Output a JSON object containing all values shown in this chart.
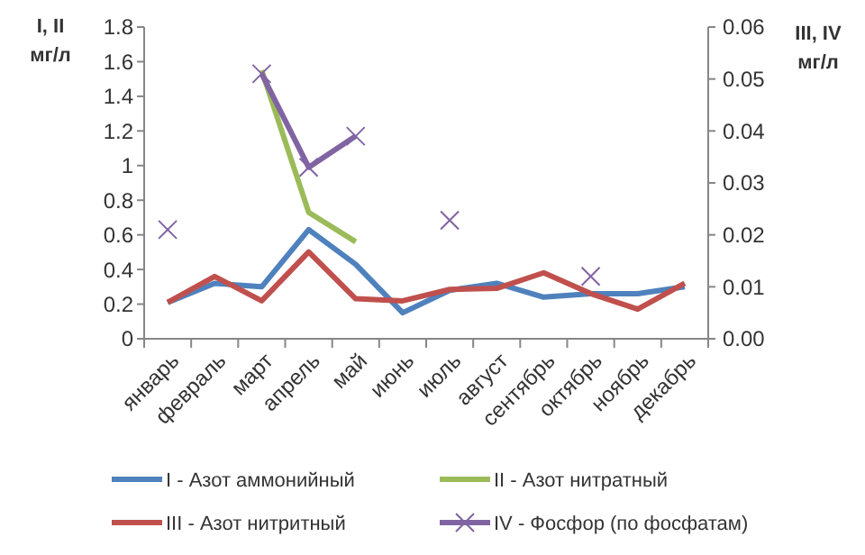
{
  "chart_data": {
    "type": "line",
    "ylabel": "I, II мг/л",
    "y2label": "III, IV мг/л",
    "categories": [
      "январь",
      "февраль",
      "март",
      "апрель",
      "май",
      "июнь",
      "июль",
      "август",
      "сентябрь",
      "октябрь",
      "ноябрь",
      "декабрь"
    ],
    "ylim": [
      0,
      1.8
    ],
    "yticks": [
      0,
      0.2,
      0.4,
      0.6,
      0.8,
      1,
      1.2,
      1.4,
      1.6,
      1.8
    ],
    "y2lim": [
      0,
      0.06
    ],
    "y2ticks": [
      {
        "value": 0,
        "label": "0.00"
      },
      {
        "value": 0.01,
        "label": "0.01"
      },
      {
        "value": 0.02,
        "label": "0.02"
      },
      {
        "value": 0.03,
        "label": "0.03"
      },
      {
        "value": 0.04,
        "label": "0.04"
      },
      {
        "value": 0.05,
        "label": "0.05"
      },
      {
        "value": 0.06,
        "label": "0.06"
      }
    ],
    "legend": "bottom",
    "grid": false,
    "series": [
      {
        "name": "I - Азот аммонийный",
        "color": "#4f81bd",
        "marker": "none",
        "values": [
          0.21,
          0.32,
          0.3,
          0.63,
          0.43,
          0.15,
          0.28,
          0.32,
          0.24,
          0.26,
          0.26,
          0.3
        ]
      },
      {
        "name": "II - Азот нитратный",
        "color": "#9bbb59",
        "marker": "none",
        "values": [
          null,
          null,
          1.55,
          0.73,
          0.56,
          null,
          null,
          null,
          null,
          null,
          null,
          null
        ]
      },
      {
        "name": "III - Азот нитритный",
        "color": "#c0504d",
        "marker": "none",
        "axis": "y2",
        "values": [
          0.007,
          0.012,
          0.0073,
          0.0167,
          0.0077,
          0.0073,
          0.0095,
          0.0097,
          0.0127,
          0.0087,
          0.0057,
          0.0107
        ]
      },
      {
        "name": "IV - Фосфор (по фосфатам)",
        "color": "#8064a2",
        "marker": "cross",
        "axis": "y2",
        "values": [
          0.021,
          null,
          0.051,
          0.033,
          0.039,
          null,
          0.0228,
          null,
          null,
          0.012,
          null,
          null
        ]
      }
    ]
  }
}
